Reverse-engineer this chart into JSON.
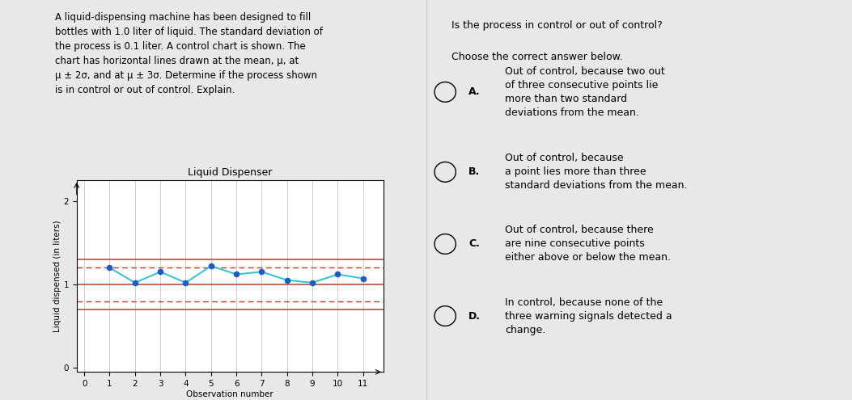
{
  "title": "Liquid Dispenser",
  "xlabel": "Observation number",
  "ylabel": "Liquid dispensed (in liters)",
  "mu": 1.0,
  "sigma": 0.1,
  "obs_x": [
    1,
    2,
    3,
    4,
    5,
    6,
    7,
    8,
    9,
    10,
    11
  ],
  "obs_y": [
    1.2,
    1.02,
    1.15,
    1.02,
    1.22,
    1.12,
    1.15,
    1.05,
    1.02,
    1.12,
    1.07
  ],
  "xlim": [
    -0.3,
    11.8
  ],
  "ylim": [
    -0.05,
    2.25
  ],
  "yticks": [
    0,
    1,
    2
  ],
  "xticks": [
    0,
    1,
    2,
    3,
    4,
    5,
    6,
    7,
    8,
    9,
    10,
    11
  ],
  "line_color": "#29c4d4",
  "dot_color": "#1a5dc8",
  "red_line_color": "#c0392b",
  "dashed_line_color": "#c0392b",
  "bg_color": "#ffffff",
  "page_bg": "#e8e8e8",
  "grid_color": "#aaaaaa",
  "left_text_lines": [
    "A liquid-dispensing machine has been designed to fill",
    "bottles with 1.0 liter of liquid. The standard deviation of",
    "the process is 0.1 liter. A control chart is shown. The",
    "chart has horizontal lines drawn at the mean, μ, at",
    "μ ± 2σ, and at μ ± 3σ. Determine if the process shown",
    "is in control or out of control. Explain."
  ],
  "right_header1": "Is the process in control or out of control?",
  "right_header2": "Choose the correct answer below.",
  "answers": [
    {
      "letter": "A.",
      "text": "Out of control, because two out\nof three consecutive points lie\nmore than two standard\ndeviations from the mean."
    },
    {
      "letter": "B.",
      "text": "Out of control, because\na point lies more than three\nstandard deviations from the mean."
    },
    {
      "letter": "C.",
      "text": "Out of control, because there\nare nine consecutive points\neither above or below the mean."
    },
    {
      "letter": "D.",
      "text": "In control, because none of the\nthree warning signals detected a\nchange."
    }
  ]
}
